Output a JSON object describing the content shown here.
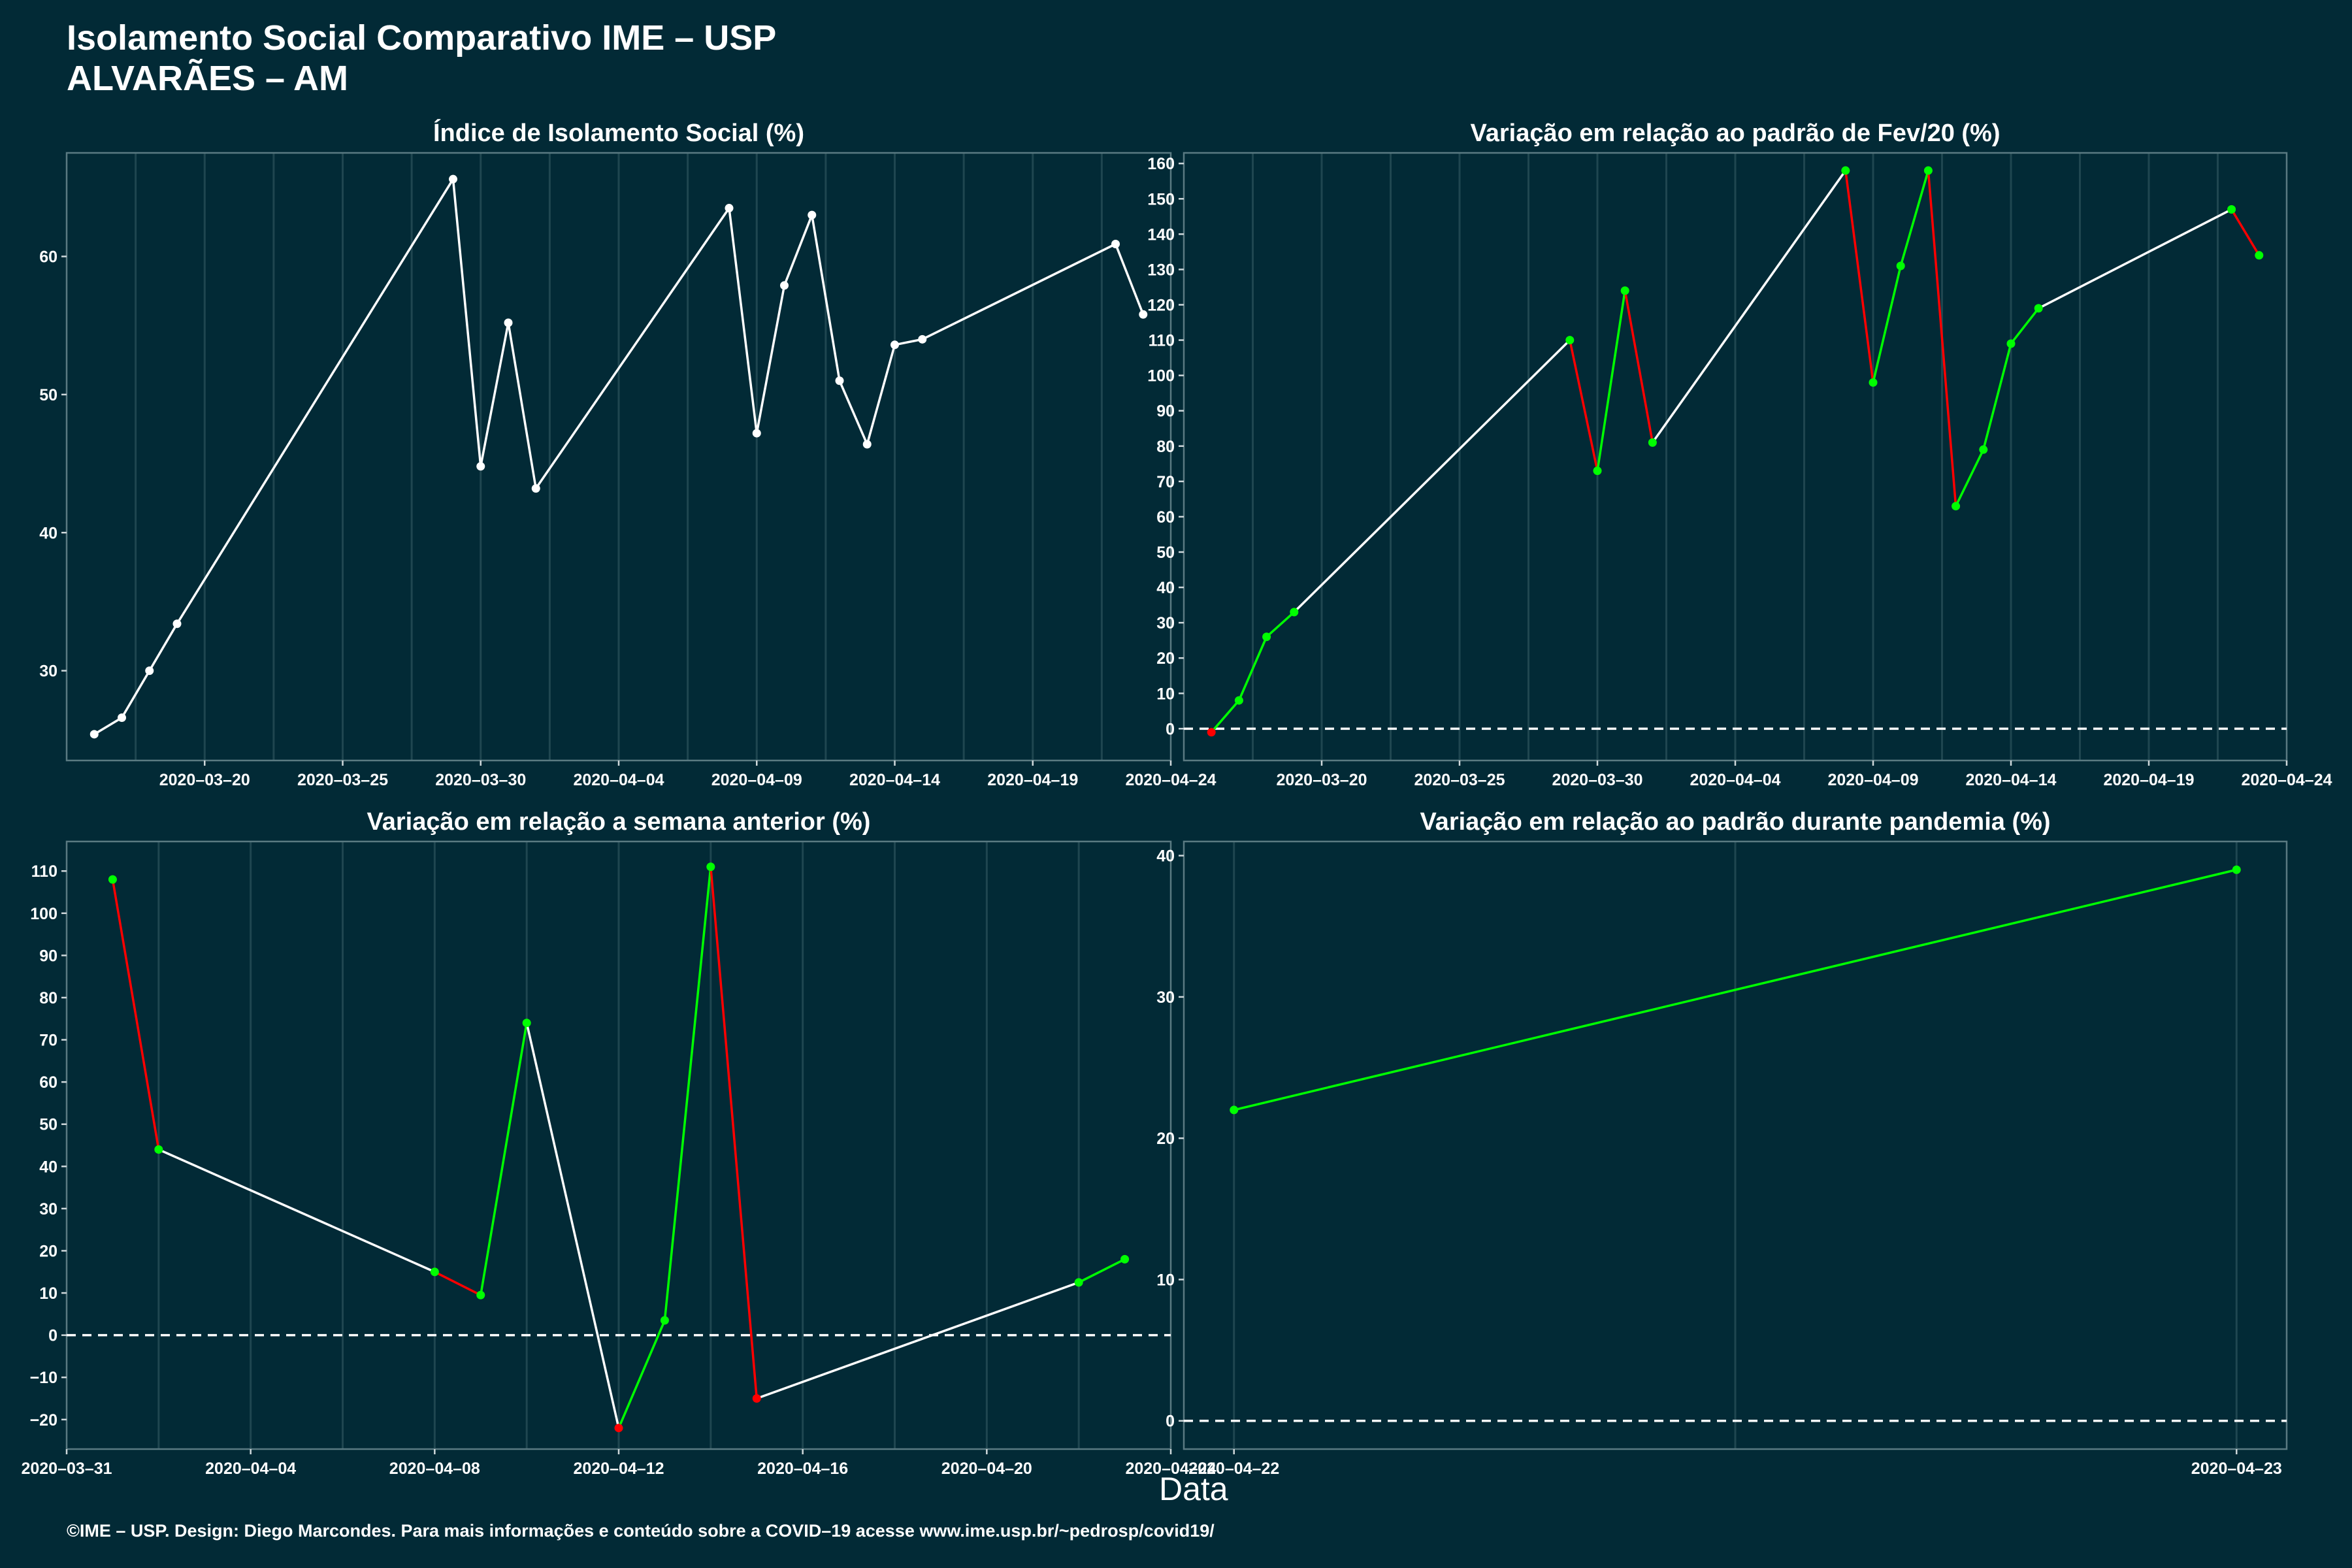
{
  "header": {
    "title": "Isolamento Social Comparativo IME – USP",
    "subtitle": "ALVARÃES – AM"
  },
  "xlabel": "Data",
  "footer": "©IME – USP. Design: Diego Marcondes. Para mais informações e conteúdo sobre a COVID–19 acesse www.ime.usp.br/~pedrosp/covid19/",
  "colors": {
    "background": "#022a36",
    "line": "#ffffff",
    "positive": "#00ff00",
    "negative": "#ff0000",
    "grid": "#1f4650"
  },
  "chart_data": [
    {
      "type": "line",
      "title": "Índice de Isolamento Social (%)",
      "x_type": "date",
      "xlim": [
        "2020-03-15",
        "2020-04-24"
      ],
      "ylim": [
        23.5,
        67.5
      ],
      "yticks": [
        30,
        40,
        50,
        60
      ],
      "xticks": [
        "2020-03-20",
        "2020-03-25",
        "2020-03-30",
        "2020-04-04",
        "2020-04-09",
        "2020-04-14",
        "2020-04-19",
        "2020-04-24"
      ],
      "colored": false,
      "points": [
        [
          "2020-03-16",
          25.4
        ],
        [
          "2020-03-17",
          26.6
        ],
        [
          "2020-03-18",
          30.0
        ],
        [
          "2020-03-19",
          33.4
        ],
        [
          "2020-03-29",
          65.6
        ],
        [
          "2020-03-30",
          44.8
        ],
        [
          "2020-03-31",
          55.2
        ],
        [
          "2020-04-01",
          43.2
        ],
        [
          "2020-04-08",
          63.5
        ],
        [
          "2020-04-09",
          47.2
        ],
        [
          "2020-04-10",
          57.9
        ],
        [
          "2020-04-11",
          63.0
        ],
        [
          "2020-04-12",
          51.0
        ],
        [
          "2020-04-13",
          46.4
        ],
        [
          "2020-04-14",
          53.6
        ],
        [
          "2020-04-15",
          54.0
        ],
        [
          "2020-04-22",
          60.9
        ],
        [
          "2020-04-23",
          55.8
        ]
      ]
    },
    {
      "type": "line",
      "title": "Variação em relação ao padrão de Fev/20 (%)",
      "x_type": "date",
      "xlim": [
        "2020-03-15",
        "2020-04-24"
      ],
      "ylim": [
        -9,
        163
      ],
      "yticks": [
        0,
        10,
        20,
        30,
        40,
        50,
        60,
        70,
        80,
        90,
        100,
        110,
        120,
        130,
        140,
        150,
        160
      ],
      "xticks": [
        "2020-03-20",
        "2020-03-25",
        "2020-03-30",
        "2020-04-04",
        "2020-04-09",
        "2020-04-14",
        "2020-04-19",
        "2020-04-24"
      ],
      "colored": true,
      "zero_line": true,
      "points": [
        [
          "2020-03-16",
          -1
        ],
        [
          "2020-03-17",
          8
        ],
        [
          "2020-03-18",
          26
        ],
        [
          "2020-03-19",
          33
        ],
        [
          "2020-03-29",
          110
        ],
        [
          "2020-03-30",
          73
        ],
        [
          "2020-03-31",
          124
        ],
        [
          "2020-04-01",
          81
        ],
        [
          "2020-04-08",
          158
        ],
        [
          "2020-04-09",
          98
        ],
        [
          "2020-04-10",
          131
        ],
        [
          "2020-04-11",
          158
        ],
        [
          "2020-04-12",
          63
        ],
        [
          "2020-04-13",
          79
        ],
        [
          "2020-04-14",
          109
        ],
        [
          "2020-04-15",
          119
        ],
        [
          "2020-04-22",
          147
        ],
        [
          "2020-04-23",
          134
        ]
      ]
    },
    {
      "type": "line",
      "title": "Variação em relação a semana anterior (%)",
      "x_type": "date",
      "xlim": [
        "2020-03-31",
        "2020-04-24"
      ],
      "ylim": [
        -27,
        117
      ],
      "yticks": [
        -20,
        -10,
        0,
        10,
        20,
        30,
        40,
        50,
        60,
        70,
        80,
        90,
        100,
        110
      ],
      "xticks": [
        "2020-03-31",
        "2020-04-04",
        "2020-04-08",
        "2020-04-12",
        "2020-04-16",
        "2020-04-20",
        "2020-04-24"
      ],
      "colored": true,
      "zero_line": true,
      "points": [
        [
          "2020-04-01",
          108
        ],
        [
          "2020-04-02",
          44
        ],
        [
          "2020-04-08",
          15
        ],
        [
          "2020-04-09",
          9.5
        ],
        [
          "2020-04-10",
          74
        ],
        [
          "2020-04-12",
          -22
        ],
        [
          "2020-04-13",
          3.5
        ],
        [
          "2020-04-14",
          111
        ],
        [
          "2020-04-15",
          -15
        ],
        [
          "2020-04-22",
          12.5
        ],
        [
          "2020-04-23",
          18
        ]
      ]
    },
    {
      "type": "line",
      "title": "Variação em relação ao padrão durante pandemia (%)",
      "x_type": "date",
      "xlim": [
        "2020-04-21.95",
        "2020-04-23.05"
      ],
      "ylim": [
        -2,
        41
      ],
      "yticks": [
        0,
        10,
        20,
        30,
        40
      ],
      "xticks": [
        "2020-04-22",
        "2020-04-23"
      ],
      "colored": true,
      "zero_line": true,
      "points": [
        [
          "2020-04-22",
          22
        ],
        [
          "2020-04-23",
          39
        ]
      ]
    }
  ]
}
